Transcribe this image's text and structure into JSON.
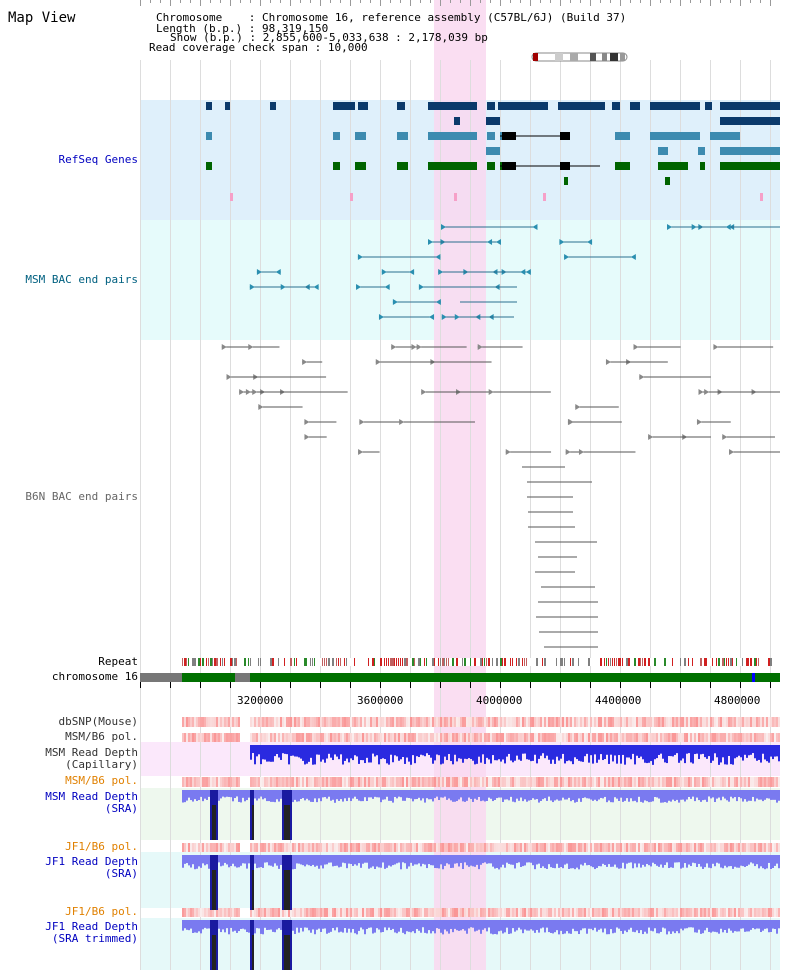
{
  "title": "Map View",
  "header": {
    "chromosome_key": "Chromosome",
    "chromosome_val": "Chromosome 16, reference assembly (C57BL/6J) (Build 37)",
    "length_key": "Length (b.p.)",
    "length_val": "98,319,150",
    "show_key": "Show (b.p.)",
    "show_val": "2,855,600-5,033,638 : 2,178,039 bp",
    "span_key": "Read coverage check span",
    "span_val": "10,000"
  },
  "tracks": {
    "refseq": "RefSeq Genes",
    "msm_bac": "MSM BAC end pairs",
    "b6n_bac": "B6N BAC end pairs",
    "repeat": "Repeat",
    "chromosome": "chromosome 16",
    "dbsnp": "dbSNP(Mouse)",
    "msm_b6_pol_1": "MSM/B6 pol.",
    "msm_read_depth_cap_1": "MSM Read Depth",
    "msm_read_depth_cap_2": "(Capillary)",
    "msm_b6_pol_2": "MSM/B6 pol.",
    "msm_read_depth_sra_1": "MSM Read Depth",
    "msm_read_depth_sra_2": "(SRA)",
    "jf1_b6_pol_1": "JF1/B6 pol.",
    "jf1_read_depth_sra_1": "JF1 Read Depth",
    "jf1_read_depth_sra_2": "(SRA)",
    "jf1_b6_pol_2": "JF1/B6 pol.",
    "jf1_read_depth_trim_1": "JF1 Read Depth",
    "jf1_read_depth_trim_2": "(SRA trimmed)"
  },
  "axis": {
    "ticks": [
      "3200000",
      "3600000",
      "4000000",
      "4400000",
      "4800000"
    ]
  },
  "colors": {
    "refseq_bg": "#dff0fb",
    "msm_bg": "#e6fbfb",
    "highlight": "#f9d8f0",
    "label_blue": "#0000c0",
    "label_teal": "#006080",
    "label_orange": "#e08000",
    "gene_dark": "#0b3a6b",
    "gene_mid": "#3d8bb0",
    "gene_green": "#006400",
    "read_depth": "#2020e0",
    "pol_red": "#f08080"
  }
}
